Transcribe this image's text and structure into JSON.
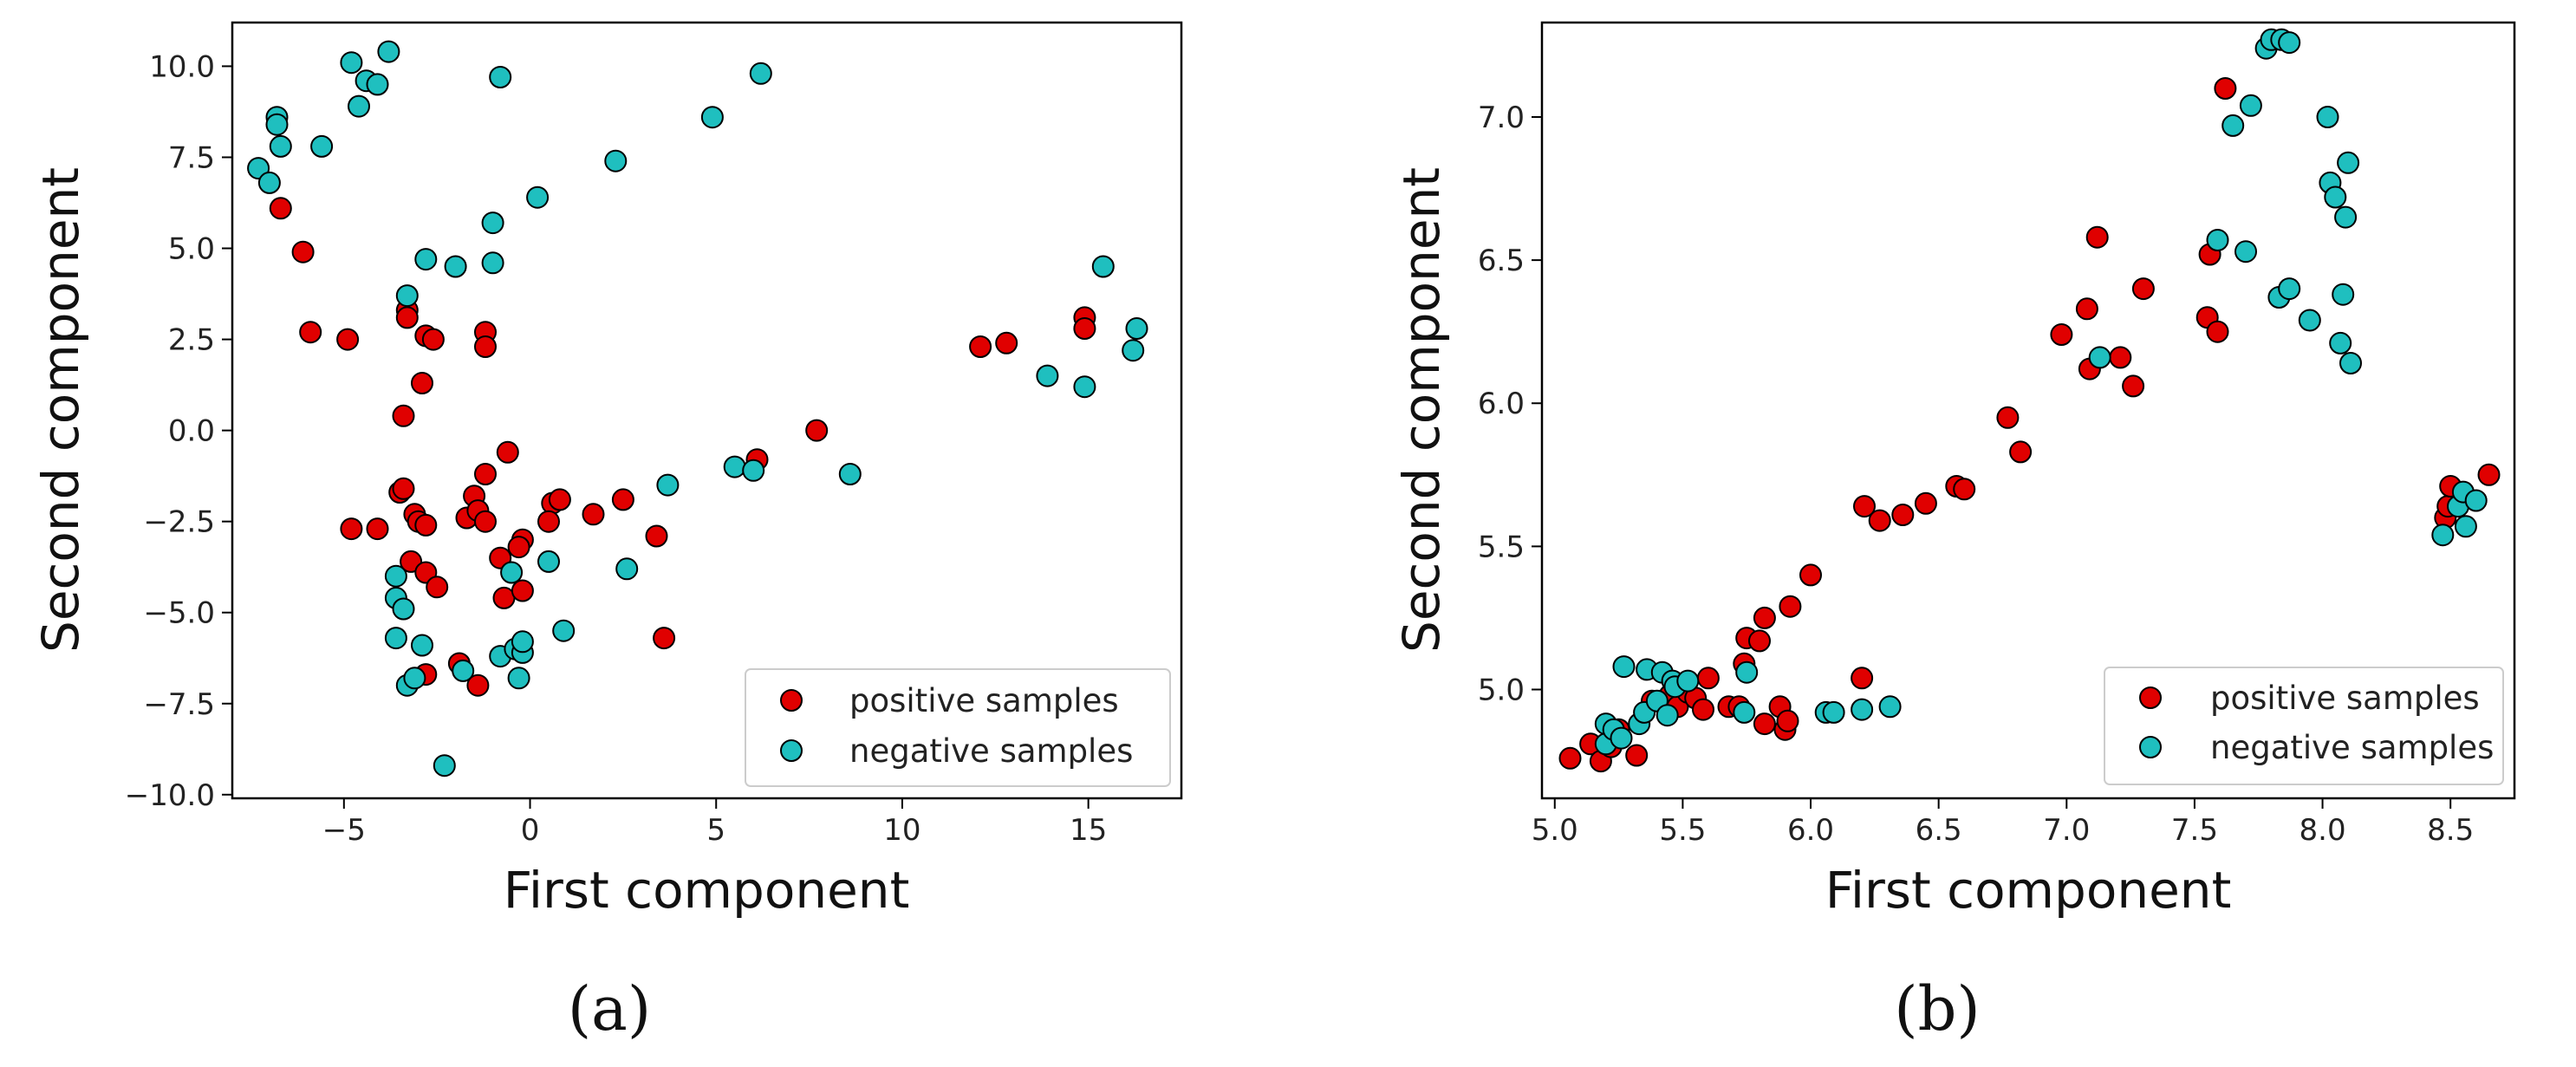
{
  "chart_data": [
    {
      "type": "scatter",
      "caption": "(a)",
      "xlabel": "First component",
      "ylabel": "Second component",
      "xlim": [
        -8.0,
        17.5
      ],
      "ylim": [
        -10.1,
        11.2
      ],
      "xticks": [
        -5,
        0,
        5,
        10,
        15
      ],
      "xtick_labels": [
        "−5",
        "0",
        "5",
        "10",
        "15"
      ],
      "yticks": [
        -10.0,
        -7.5,
        -5.0,
        -2.5,
        0.0,
        2.5,
        5.0,
        7.5,
        10.0
      ],
      "ytick_labels": [
        "−10.0",
        "−7.5",
        "−5.0",
        "−2.5",
        "0.0",
        "2.5",
        "5.0",
        "7.5",
        "10.0"
      ],
      "grid": false,
      "legend_position": "bottom-right",
      "series": [
        {
          "name": "positive samples",
          "color": "#e00000",
          "points": [
            [
              -6.7,
              6.1
            ],
            [
              -6.1,
              4.9
            ],
            [
              -5.9,
              2.7
            ],
            [
              -4.9,
              2.5
            ],
            [
              -3.3,
              3.3
            ],
            [
              -3.3,
              3.1
            ],
            [
              -2.8,
              2.6
            ],
            [
              -2.6,
              2.5
            ],
            [
              -1.2,
              2.7
            ],
            [
              -1.2,
              2.3
            ],
            [
              -2.9,
              1.3
            ],
            [
              -3.4,
              0.4
            ],
            [
              -4.8,
              -2.7
            ],
            [
              -4.1,
              -2.7
            ],
            [
              -3.5,
              -1.7
            ],
            [
              -3.4,
              -1.6
            ],
            [
              -3.1,
              -2.3
            ],
            [
              -3.0,
              -2.5
            ],
            [
              -2.8,
              -2.6
            ],
            [
              -1.7,
              -2.4
            ],
            [
              -1.5,
              -1.8
            ],
            [
              -1.4,
              -2.2
            ],
            [
              -1.2,
              -2.5
            ],
            [
              -1.2,
              -1.2
            ],
            [
              -0.6,
              -0.6
            ],
            [
              -0.2,
              -3.0
            ],
            [
              -0.3,
              -3.2
            ],
            [
              0.6,
              -2.0
            ],
            [
              0.5,
              -2.5
            ],
            [
              0.8,
              -1.9
            ],
            [
              1.7,
              -2.3
            ],
            [
              2.5,
              -1.9
            ],
            [
              3.4,
              -2.9
            ],
            [
              -3.2,
              -3.6
            ],
            [
              -2.8,
              -3.9
            ],
            [
              -2.5,
              -4.3
            ],
            [
              -0.7,
              -4.6
            ],
            [
              -0.2,
              -4.4
            ],
            [
              -0.8,
              -3.5
            ],
            [
              -1.4,
              -7.0
            ],
            [
              -2.8,
              -6.7
            ],
            [
              -1.9,
              -6.4
            ],
            [
              3.6,
              -5.7
            ],
            [
              6.1,
              -0.8
            ],
            [
              7.7,
              0.0
            ],
            [
              12.1,
              2.3
            ],
            [
              12.8,
              2.4
            ],
            [
              14.9,
              3.1
            ],
            [
              14.9,
              2.8
            ]
          ]
        },
        {
          "name": "negative samples",
          "color": "#1fbfbf",
          "points": [
            [
              -7.3,
              7.2
            ],
            [
              -7.0,
              6.8
            ],
            [
              -6.8,
              8.6
            ],
            [
              -6.8,
              8.4
            ],
            [
              -6.7,
              7.8
            ],
            [
              -5.6,
              7.8
            ],
            [
              -4.8,
              10.1
            ],
            [
              -4.6,
              8.9
            ],
            [
              -4.4,
              9.6
            ],
            [
              -4.1,
              9.5
            ],
            [
              -3.8,
              10.4
            ],
            [
              -0.8,
              9.7
            ],
            [
              6.2,
              9.8
            ],
            [
              4.9,
              8.6
            ],
            [
              2.3,
              7.4
            ],
            [
              0.2,
              6.4
            ],
            [
              -1.0,
              5.7
            ],
            [
              -1.0,
              4.6
            ],
            [
              -2.0,
              4.5
            ],
            [
              -2.8,
              4.7
            ],
            [
              -3.3,
              3.7
            ],
            [
              15.4,
              4.5
            ],
            [
              16.2,
              2.2
            ],
            [
              16.3,
              2.8
            ],
            [
              13.9,
              1.5
            ],
            [
              14.9,
              1.2
            ],
            [
              5.5,
              -1.0
            ],
            [
              6.0,
              -1.1
            ],
            [
              8.6,
              -1.2
            ],
            [
              3.7,
              -1.5
            ],
            [
              -0.5,
              -3.9
            ],
            [
              0.5,
              -3.6
            ],
            [
              2.6,
              -3.8
            ],
            [
              -3.6,
              -4.0
            ],
            [
              -3.6,
              -4.6
            ],
            [
              -3.4,
              -4.9
            ],
            [
              -3.6,
              -5.7
            ],
            [
              -2.9,
              -5.9
            ],
            [
              -0.8,
              -6.2
            ],
            [
              -0.4,
              -6.0
            ],
            [
              -0.2,
              -6.1
            ],
            [
              -0.2,
              -5.8
            ],
            [
              0.9,
              -5.5
            ],
            [
              -1.8,
              -6.6
            ],
            [
              -3.3,
              -7.0
            ],
            [
              -3.1,
              -6.8
            ],
            [
              -0.3,
              -6.8
            ],
            [
              -2.3,
              -9.2
            ]
          ]
        }
      ]
    },
    {
      "type": "scatter",
      "caption": "(b)",
      "xlabel": "First component",
      "ylabel": "Second component",
      "xlim": [
        4.95,
        8.75
      ],
      "ylim": [
        4.62,
        7.33
      ],
      "xticks": [
        5.0,
        5.5,
        6.0,
        6.5,
        7.0,
        7.5,
        8.0,
        8.5
      ],
      "xtick_labels": [
        "5.0",
        "5.5",
        "6.0",
        "6.5",
        "7.0",
        "7.5",
        "8.0",
        "8.5"
      ],
      "yticks": [
        5.0,
        5.5,
        6.0,
        6.5,
        7.0
      ],
      "ytick_labels": [
        "5.0",
        "5.5",
        "6.0",
        "6.5",
        "7.0"
      ],
      "grid": false,
      "legend_position": "bottom-right",
      "series": [
        {
          "name": "positive samples",
          "color": "#e00000",
          "points": [
            [
              5.06,
              4.76
            ],
            [
              5.14,
              4.81
            ],
            [
              5.18,
              4.75
            ],
            [
              5.22,
              4.8
            ],
            [
              5.25,
              4.86
            ],
            [
              5.32,
              4.77
            ],
            [
              5.38,
              4.96
            ],
            [
              5.45,
              4.98
            ],
            [
              5.48,
              4.94
            ],
            [
              5.52,
              4.99
            ],
            [
              5.55,
              4.97
            ],
            [
              5.58,
              4.93
            ],
            [
              5.6,
              5.04
            ],
            [
              5.68,
              4.94
            ],
            [
              5.72,
              4.94
            ],
            [
              5.74,
              5.09
            ],
            [
              5.75,
              5.18
            ],
            [
              5.8,
              5.17
            ],
            [
              5.82,
              5.25
            ],
            [
              5.82,
              4.88
            ],
            [
              5.88,
              4.94
            ],
            [
              5.9,
              4.86
            ],
            [
              5.91,
              4.89
            ],
            [
              5.92,
              5.29
            ],
            [
              6.0,
              5.4
            ],
            [
              6.2,
              5.04
            ],
            [
              6.21,
              5.64
            ],
            [
              6.27,
              5.59
            ],
            [
              6.36,
              5.61
            ],
            [
              6.45,
              5.65
            ],
            [
              6.57,
              5.71
            ],
            [
              6.6,
              5.7
            ],
            [
              6.77,
              5.95
            ],
            [
              6.82,
              5.83
            ],
            [
              6.98,
              6.24
            ],
            [
              7.08,
              6.33
            ],
            [
              7.09,
              6.12
            ],
            [
              7.12,
              6.58
            ],
            [
              7.21,
              6.16
            ],
            [
              7.26,
              6.06
            ],
            [
              7.3,
              6.4
            ],
            [
              7.55,
              6.3
            ],
            [
              7.56,
              6.52
            ],
            [
              7.59,
              6.25
            ],
            [
              7.62,
              7.1
            ],
            [
              8.48,
              5.6
            ],
            [
              8.49,
              5.64
            ],
            [
              8.5,
              5.71
            ],
            [
              8.65,
              5.75
            ]
          ]
        },
        {
          "name": "negative samples",
          "color": "#1fbfbf",
          "points": [
            [
              5.27,
              5.08
            ],
            [
              5.2,
              4.88
            ],
            [
              5.2,
              4.81
            ],
            [
              5.23,
              4.86
            ],
            [
              5.26,
              4.83
            ],
            [
              5.33,
              4.88
            ],
            [
              5.35,
              4.92
            ],
            [
              5.36,
              5.07
            ],
            [
              5.4,
              4.96
            ],
            [
              5.42,
              5.06
            ],
            [
              5.44,
              4.91
            ],
            [
              5.46,
              5.03
            ],
            [
              5.47,
              5.01
            ],
            [
              5.52,
              5.03
            ],
            [
              5.74,
              4.92
            ],
            [
              5.75,
              5.06
            ],
            [
              6.06,
              4.92
            ],
            [
              6.09,
              4.92
            ],
            [
              6.2,
              4.93
            ],
            [
              6.31,
              4.94
            ],
            [
              7.13,
              6.16
            ],
            [
              7.59,
              6.57
            ],
            [
              7.65,
              6.97
            ],
            [
              7.72,
              7.04
            ],
            [
              7.78,
              7.24
            ],
            [
              7.8,
              7.27
            ],
            [
              7.84,
              7.27
            ],
            [
              7.87,
              7.26
            ],
            [
              7.7,
              6.53
            ],
            [
              7.83,
              6.37
            ],
            [
              7.87,
              6.4
            ],
            [
              7.95,
              6.29
            ],
            [
              8.02,
              7.0
            ],
            [
              8.03,
              6.77
            ],
            [
              8.05,
              6.72
            ],
            [
              8.07,
              6.21
            ],
            [
              8.08,
              6.38
            ],
            [
              8.09,
              6.65
            ],
            [
              8.1,
              6.84
            ],
            [
              8.11,
              6.14
            ],
            [
              8.47,
              5.54
            ],
            [
              8.53,
              5.64
            ],
            [
              8.55,
              5.69
            ],
            [
              8.56,
              5.57
            ],
            [
              8.6,
              5.66
            ]
          ]
        }
      ]
    }
  ]
}
